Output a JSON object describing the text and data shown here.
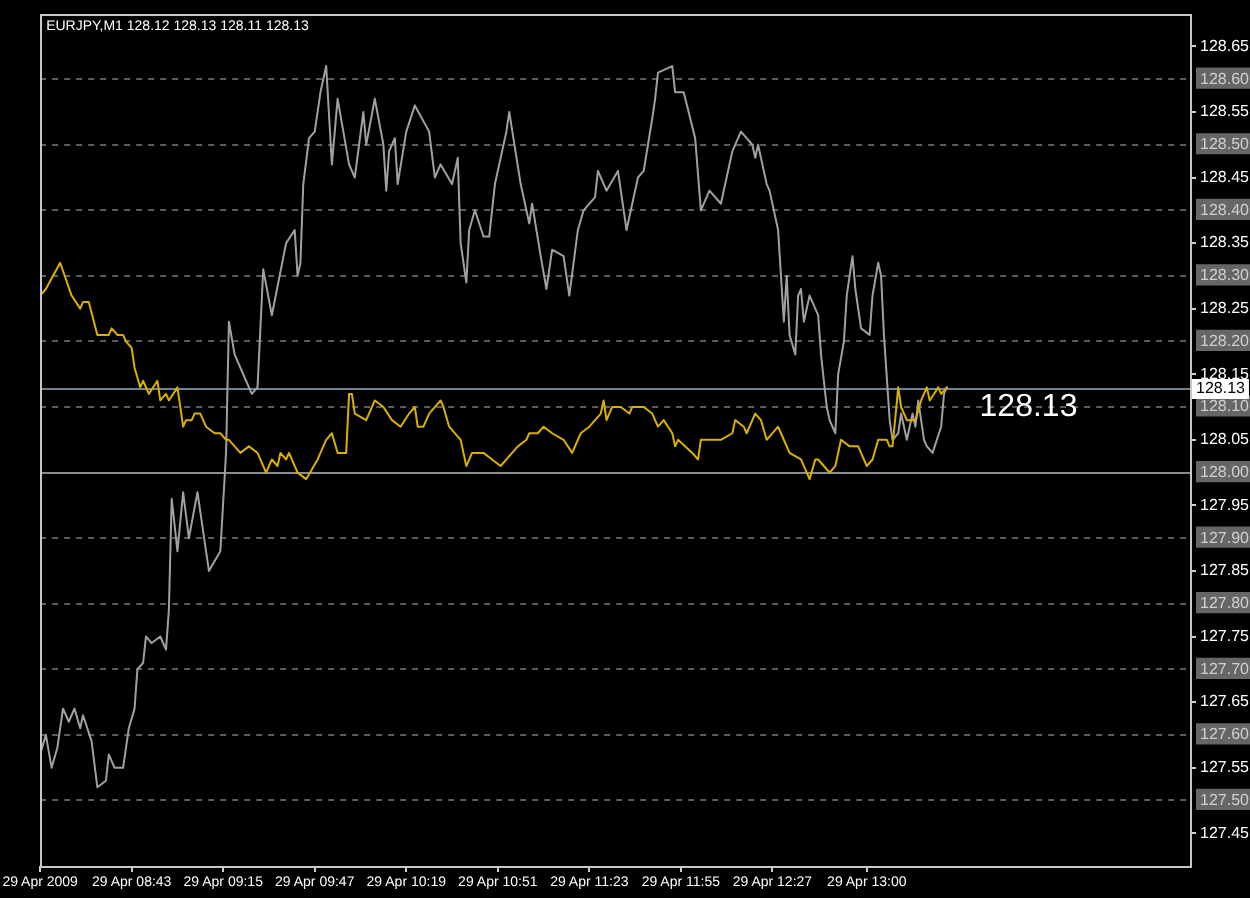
{
  "chart_data": {
    "type": "line",
    "title": "EURJPY,M1 128.12 128.13 128.11 128.13",
    "marker": "none",
    "grid": "y",
    "xlim": [
      "2009-04-29T08:11",
      "2009-04-29T14:53"
    ],
    "xticks": [
      {
        "value": "2009-04-29T08:11",
        "label": "29 Apr 2009"
      },
      {
        "value": "2009-04-29T08:43",
        "label": "29 Apr 08:43"
      },
      {
        "value": "2009-04-29T09:15",
        "label": "29 Apr 09:15"
      },
      {
        "value": "2009-04-29T09:47",
        "label": "29 Apr 09:47"
      },
      {
        "value": "2009-04-29T10:19",
        "label": "29 Apr 10:19"
      },
      {
        "value": "2009-04-29T10:51",
        "label": "29 Apr 10:51"
      },
      {
        "value": "2009-04-29T11:23",
        "label": "29 Apr 11:23"
      },
      {
        "value": "2009-04-29T11:55",
        "label": "29 Apr 11:55"
      },
      {
        "value": "2009-04-29T12:27",
        "label": "29 Apr 12:27"
      },
      {
        "value": "2009-04-29T13:00",
        "label": "29 Apr 13:00"
      }
    ],
    "ylim": [
      127.4,
      128.7
    ],
    "yticks": [
      127.45,
      {
        "value": 127.5,
        "label": "127.50"
      },
      127.55,
      {
        "value": 127.6,
        "label": "127.60"
      },
      127.65,
      {
        "value": 127.7,
        "label": "127.70"
      },
      127.75,
      {
        "value": 127.8,
        "label": "127.80"
      },
      127.85,
      {
        "value": 127.9,
        "label": "127.90"
      },
      127.95,
      {
        "value": 128,
        "label": "128.00"
      },
      128.05,
      {
        "value": 128.1,
        "label": "128.10"
      },
      128.15,
      {
        "value": 128.2,
        "label": "128.20"
      },
      128.25,
      {
        "value": 128.3,
        "label": "128.30"
      },
      128.35,
      {
        "value": 128.4,
        "label": "128.40"
      },
      128.45,
      {
        "value": 128.5,
        "label": "128.50"
      },
      128.55,
      {
        "value": 128.6,
        "label": "128.60"
      },
      128.65
    ],
    "ref_lines": [
      {
        "axis": "y",
        "value": 128.13,
        "label": "128.13",
        "color": "#6f8495"
      },
      {
        "axis": "y",
        "value": 128,
        "color": "#8c8c8c"
      }
    ],
    "annotations": [
      "128.13"
    ],
    "series": [
      {
        "color": "#a0a0a0",
        "x": [
          "2009-04-29T08:11",
          "2009-04-29T08:13",
          "2009-04-29T08:15",
          "2009-04-29T08:17",
          "2009-04-29T08:19",
          "2009-04-29T08:21",
          "2009-04-29T08:23",
          "2009-04-29T08:25",
          "2009-04-29T08:26",
          "2009-04-29T08:29",
          "2009-04-29T08:31",
          "2009-04-29T08:34",
          "2009-04-29T08:35",
          "2009-04-29T08:37",
          "2009-04-29T08:40",
          "2009-04-29T08:42",
          "2009-04-29T08:44",
          "2009-04-29T08:45",
          "2009-04-29T08:47",
          "2009-04-29T08:48",
          "2009-04-29T08:50",
          "2009-04-29T08:53",
          "2009-04-29T08:55",
          "2009-04-29T08:56",
          "2009-04-29T08:57",
          "2009-04-29T08:59",
          "2009-04-29T09:01",
          "2009-04-29T09:03",
          "2009-04-29T09:06",
          "2009-04-29T09:10",
          "2009-04-29T09:14",
          "2009-04-29T09:16",
          "2009-04-29T09:17",
          "2009-04-29T09:19",
          "2009-04-29T09:22",
          "2009-04-29T09:25",
          "2009-04-29T09:27",
          "2009-04-29T09:29",
          "2009-04-29T09:32",
          "2009-04-29T09:37",
          "2009-04-29T09:40",
          "2009-04-29T09:41",
          "2009-04-29T09:42",
          "2009-04-29T09:43",
          "2009-04-29T09:45",
          "2009-04-29T09:47",
          "2009-04-29T09:49",
          "2009-04-29T09:51",
          "2009-04-29T09:53",
          "2009-04-29T09:55",
          "2009-04-29T09:59",
          "2009-04-29T10:01",
          "2009-04-29T10:04",
          "2009-04-29T10:05",
          "2009-04-29T10:08",
          "2009-04-29T10:11",
          "2009-04-29T10:12",
          "2009-04-29T10:13",
          "2009-04-29T10:15",
          "2009-04-29T10:16",
          "2009-04-29T10:19",
          "2009-04-29T10:22",
          "2009-04-29T10:27",
          "2009-04-29T10:29",
          "2009-04-29T10:31",
          "2009-04-29T10:35",
          "2009-04-29T10:37",
          "2009-04-29T10:38",
          "2009-04-29T10:40",
          "2009-04-29T10:41",
          "2009-04-29T10:43",
          "2009-04-29T10:46",
          "2009-04-29T10:48",
          "2009-04-29T10:50",
          "2009-04-29T10:54",
          "2009-04-29T10:55",
          "2009-04-29T10:59",
          "2009-04-29T11:02",
          "2009-04-29T11:03",
          "2009-04-29T11:06",
          "2009-04-29T11:08",
          "2009-04-29T11:10",
          "2009-04-29T11:14",
          "2009-04-29T11:16",
          "2009-04-29T11:19",
          "2009-04-29T11:21",
          "2009-04-29T11:25",
          "2009-04-29T11:26",
          "2009-04-29T11:29",
          "2009-04-29T11:33",
          "2009-04-29T11:36",
          "2009-04-29T11:40",
          "2009-04-29T11:42",
          "2009-04-29T11:45",
          "2009-04-29T11:46",
          "2009-04-29T11:47",
          "2009-04-29T11:52",
          "2009-04-29T11:53",
          "2009-04-29T11:56",
          "2009-04-29T12:00",
          "2009-04-29T12:02",
          "2009-04-29T12:05",
          "2009-04-29T12:09",
          "2009-04-29T12:11",
          "2009-04-29T12:13",
          "2009-04-29T12:16",
          "2009-04-29T12:20",
          "2009-04-29T12:21",
          "2009-04-29T12:22",
          "2009-04-29T12:23",
          "2009-04-29T12:25",
          "2009-04-29T12:26",
          "2009-04-29T12:28",
          "2009-04-29T12:29",
          "2009-04-29T12:31",
          "2009-04-29T12:32",
          "2009-04-29T12:33",
          "2009-04-29T12:35",
          "2009-04-29T12:36",
          "2009-04-29T12:37",
          "2009-04-29T12:38",
          "2009-04-29T12:40",
          "2009-04-29T12:43",
          "2009-04-29T12:44",
          "2009-04-29T12:46",
          "2009-04-29T12:47",
          "2009-04-29T12:49",
          "2009-04-29T12:50",
          "2009-04-29T12:52",
          "2009-04-29T12:53",
          "2009-04-29T12:55",
          "2009-04-29T12:56",
          "2009-04-29T12:58",
          "2009-04-29T13:01",
          "2009-04-29T13:02",
          "2009-04-29T13:04",
          "2009-04-29T13:05",
          "2009-04-29T13:06",
          "2009-04-29T13:08",
          "2009-04-29T13:09",
          "2009-04-29T13:11",
          "2009-04-29T13:12",
          "2009-04-29T13:14",
          "2009-04-29T13:16",
          "2009-04-29T13:17",
          "2009-04-29T13:18",
          "2009-04-29T13:20",
          "2009-04-29T13:21",
          "2009-04-29T13:23",
          "2009-04-29T13:26",
          "2009-04-29T13:27",
          "2009-04-29T13:28"
        ],
        "values": [
          127.57,
          127.6,
          127.55,
          127.58,
          127.64,
          127.62,
          127.64,
          127.61,
          127.63,
          127.59,
          127.52,
          127.53,
          127.57,
          127.55,
          127.55,
          127.61,
          127.64,
          127.7,
          127.71,
          127.75,
          127.74,
          127.75,
          127.73,
          127.79,
          127.96,
          127.88,
          127.97,
          127.9,
          127.97,
          127.85,
          127.88,
          128.03,
          128.23,
          128.18,
          128.15,
          128.12,
          128.13,
          128.31,
          128.24,
          128.35,
          128.37,
          128.3,
          128.32,
          128.44,
          128.51,
          128.52,
          128.58,
          128.62,
          128.47,
          128.57,
          128.47,
          128.45,
          128.55,
          128.5,
          128.57,
          128.5,
          128.43,
          128.49,
          128.51,
          128.44,
          128.52,
          128.56,
          128.52,
          128.45,
          128.47,
          128.44,
          128.48,
          128.35,
          128.29,
          128.37,
          128.4,
          128.36,
          128.36,
          128.44,
          128.52,
          128.55,
          128.44,
          128.38,
          128.41,
          128.33,
          128.28,
          128.34,
          128.33,
          128.27,
          128.37,
          128.4,
          128.42,
          128.46,
          128.43,
          128.46,
          128.37,
          128.45,
          128.46,
          128.54,
          128.57,
          128.61,
          128.62,
          128.58,
          128.58,
          128.51,
          128.4,
          128.43,
          128.41,
          128.45,
          128.49,
          128.52,
          128.5,
          128.48,
          128.5,
          128.48,
          128.44,
          128.43,
          128.39,
          128.37,
          128.23,
          128.3,
          128.21,
          128.18,
          128.27,
          128.28,
          128.23,
          128.27,
          128.24,
          128.18,
          128.1,
          128.08,
          128.06,
          128.15,
          128.2,
          128.27,
          128.33,
          128.28,
          128.22,
          128.21,
          128.27,
          128.32,
          128.3,
          128.21,
          128.08,
          128.05,
          128.06,
          128.09,
          128.05,
          128.09,
          128.07,
          128.11,
          128.05,
          128.04,
          128.03,
          128.07,
          128.12,
          128.13
        ]
      },
      {
        "color": "#d9b000",
        "x": [
          "2009-04-29T08:11",
          "2009-04-29T08:13",
          "2009-04-29T08:18",
          "2009-04-29T08:22",
          "2009-04-29T08:25",
          "2009-04-29T08:26",
          "2009-04-29T08:28",
          "2009-04-29T08:31",
          "2009-04-29T08:35",
          "2009-04-29T08:36",
          "2009-04-29T08:38",
          "2009-04-29T08:40",
          "2009-04-29T08:41",
          "2009-04-29T08:43",
          "2009-04-29T08:44",
          "2009-04-29T08:46",
          "2009-04-29T08:47",
          "2009-04-29T08:49",
          "2009-04-29T08:52",
          "2009-04-29T08:53",
          "2009-04-29T08:55",
          "2009-04-29T08:56",
          "2009-04-29T08:59",
          "2009-04-29T09:01",
          "2009-04-29T09:02",
          "2009-04-29T09:04",
          "2009-04-29T09:05",
          "2009-04-29T09:07",
          "2009-04-29T09:09",
          "2009-04-29T09:12",
          "2009-04-29T09:14",
          "2009-04-29T09:16",
          "2009-04-29T09:17",
          "2009-04-29T09:21",
          "2009-04-29T09:24",
          "2009-04-29T09:27",
          "2009-04-29T09:30",
          "2009-04-29T09:32",
          "2009-04-29T09:34",
          "2009-04-29T09:35",
          "2009-04-29T09:37",
          "2009-04-29T09:38",
          "2009-04-29T09:41",
          "2009-04-29T09:44",
          "2009-04-29T09:48",
          "2009-04-29T09:51",
          "2009-04-29T09:53",
          "2009-04-29T09:55",
          "2009-04-29T09:58",
          "2009-04-29T09:59",
          "2009-04-29T10:00",
          "2009-04-29T10:01",
          "2009-04-29T10:05",
          "2009-04-29T10:08",
          "2009-04-29T10:11",
          "2009-04-29T10:14",
          "2009-04-29T10:17",
          "2009-04-29T10:20",
          "2009-04-29T10:22",
          "2009-04-29T10:23",
          "2009-04-29T10:25",
          "2009-04-29T10:27",
          "2009-04-29T10:31",
          "2009-04-29T10:32",
          "2009-04-29T10:34",
          "2009-04-29T10:38",
          "2009-04-29T10:40",
          "2009-04-29T10:42",
          "2009-04-29T10:46",
          "2009-04-29T10:49",
          "2009-04-29T10:52",
          "2009-04-29T10:56",
          "2009-04-29T10:58",
          "2009-04-29T11:01",
          "2009-04-29T11:02",
          "2009-04-29T11:05",
          "2009-04-29T11:07",
          "2009-04-29T11:10",
          "2009-04-29T11:14",
          "2009-04-29T11:17",
          "2009-04-29T11:20",
          "2009-04-29T11:23",
          "2009-04-29T11:27",
          "2009-04-29T11:28",
          "2009-04-29T11:29",
          "2009-04-29T11:31",
          "2009-04-29T11:34",
          "2009-04-29T11:37",
          "2009-04-29T11:38",
          "2009-04-29T11:42",
          "2009-04-29T11:45",
          "2009-04-29T11:46",
          "2009-04-29T11:47",
          "2009-04-29T11:49",
          "2009-04-29T11:52",
          "2009-04-29T11:53",
          "2009-04-29T11:54",
          "2009-04-29T11:59",
          "2009-04-29T12:01",
          "2009-04-29T12:02",
          "2009-04-29T12:09",
          "2009-04-29T12:13",
          "2009-04-29T12:14",
          "2009-04-29T12:17",
          "2009-04-29T12:18",
          "2009-04-29T12:21",
          "2009-04-29T12:23",
          "2009-04-29T12:25",
          "2009-04-29T12:29",
          "2009-04-29T12:30",
          "2009-04-29T12:33",
          "2009-04-29T12:37",
          "2009-04-29T12:40",
          "2009-04-29T12:42",
          "2009-04-29T12:43",
          "2009-04-29T12:45",
          "2009-04-29T12:47",
          "2009-04-29T12:49",
          "2009-04-29T12:51",
          "2009-04-29T12:54",
          "2009-04-29T12:57",
          "2009-04-29T13:00",
          "2009-04-29T13:02",
          "2009-04-29T13:04",
          "2009-04-29T13:07",
          "2009-04-29T13:08",
          "2009-04-29T13:09",
          "2009-04-29T13:11",
          "2009-04-29T13:12",
          "2009-04-29T13:14",
          "2009-04-29T13:17",
          "2009-04-29T13:19",
          "2009-04-29T13:21",
          "2009-04-29T13:22",
          "2009-04-29T13:25",
          "2009-04-29T13:26",
          "2009-04-29T13:28"
        ],
        "values": [
          128.27,
          128.28,
          128.32,
          128.27,
          128.25,
          128.26,
          128.26,
          128.21,
          128.21,
          128.22,
          128.21,
          128.21,
          128.2,
          128.19,
          128.16,
          128.13,
          128.14,
          128.12,
          128.14,
          128.11,
          128.12,
          128.11,
          128.13,
          128.07,
          128.08,
          128.08,
          128.09,
          128.09,
          128.07,
          128.06,
          128.06,
          128.05,
          128.05,
          128.03,
          128.04,
          128.03,
          128.0,
          128.02,
          128.01,
          128.03,
          128.02,
          128.03,
          128.0,
          127.99,
          128.02,
          128.05,
          128.06,
          128.03,
          128.03,
          128.12,
          128.12,
          128.09,
          128.08,
          128.11,
          128.1,
          128.08,
          128.07,
          128.09,
          128.1,
          128.07,
          128.07,
          128.09,
          128.11,
          128.1,
          128.07,
          128.05,
          128.01,
          128.03,
          128.03,
          128.02,
          128.01,
          128.03,
          128.04,
          128.05,
          128.06,
          128.06,
          128.07,
          128.06,
          128.05,
          128.03,
          128.06,
          128.07,
          128.09,
          128.11,
          128.08,
          128.1,
          128.1,
          128.09,
          128.1,
          128.1,
          128.09,
          128.08,
          128.07,
          128.08,
          128.06,
          128.04,
          128.05,
          128.03,
          128.02,
          128.05,
          128.05,
          128.06,
          128.08,
          128.07,
          128.06,
          128.09,
          128.08,
          128.05,
          128.07,
          128.06,
          128.03,
          128.02,
          127.99,
          128.02,
          128.02,
          128.01,
          128.0,
          128.01,
          128.05,
          128.04,
          128.04,
          128.01,
          128.02,
          128.05,
          128.05,
          128.04,
          128.04,
          128.13,
          128.1,
          128.08,
          128.08,
          128.11,
          128.13,
          128.11,
          128.13,
          128.12,
          128.13
        ]
      }
    ]
  }
}
